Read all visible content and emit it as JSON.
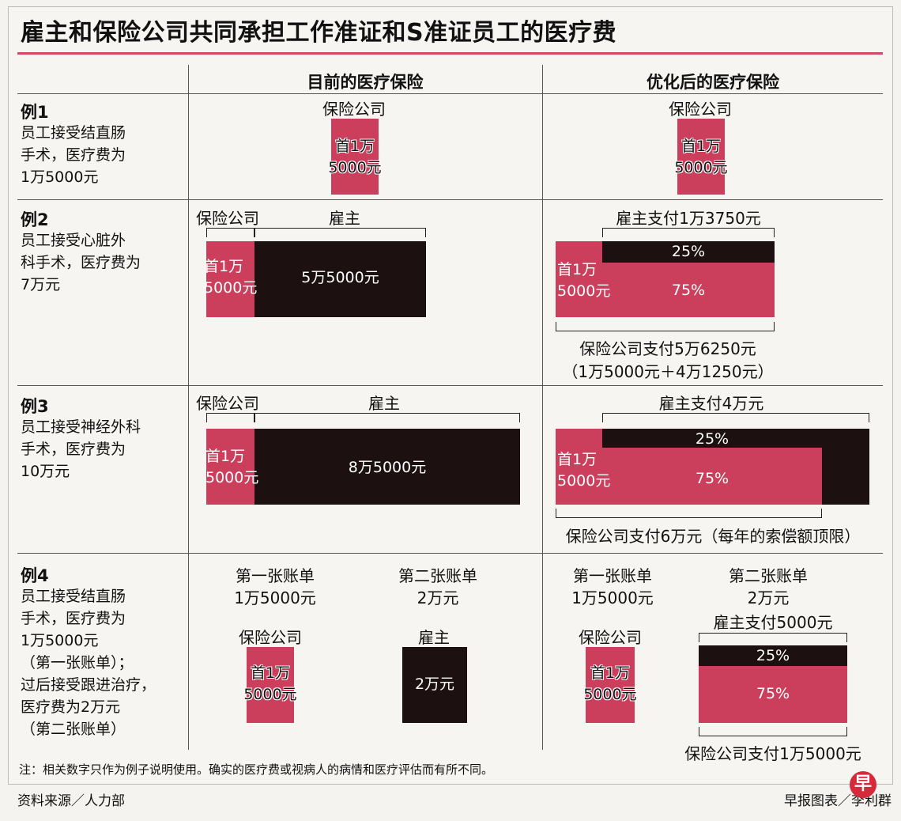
{
  "title": "雇主和保险公司共同承担工作准证和S准证员工的医疗费",
  "headers": {
    "current": "目前的医疗保险",
    "optimized": "优化后的医疗保险"
  },
  "examples": [
    {
      "title": "例1",
      "desc": "员工接受结直肠\n手术，医疗费为\n1万5000元",
      "current": {
        "insurer_label": "保险公司",
        "insurer_box": "首1万\n5000元"
      },
      "optimized": {
        "insurer_label": "保险公司",
        "insurer_box": "首1万\n5000元"
      }
    },
    {
      "title": "例2",
      "desc": "员工接受心脏外\n科手术，医疗费为\n7万元",
      "current": {
        "insurer_label": "保险公司",
        "employer_label": "雇主",
        "insurer_box": "首1万\n5000元",
        "employer_box": "5万5000元"
      },
      "optimized": {
        "employer_pays": "雇主支付1万3750元",
        "first_box": "首1万\n5000元",
        "pct_employer": "25%",
        "pct_insurer": "75%",
        "insurer_pays": "保险公司支付5万6250元",
        "insurer_breakdown": "（1万5000元＋4万1250元）"
      }
    },
    {
      "title": "例3",
      "desc": "员工接受神经外科\n手术，医疗费为\n10万元",
      "current": {
        "insurer_label": "保险公司",
        "employer_label": "雇主",
        "insurer_box": "首1万\n5000元",
        "employer_box": "8万5000元"
      },
      "optimized": {
        "employer_pays": "雇主支付4万元",
        "first_box": "首1万\n5000元",
        "pct_employer": "25%",
        "pct_insurer": "75%",
        "insurer_pays": "保险公司支付6万元（每年的索偿额顶限）"
      }
    },
    {
      "title": "例4",
      "desc": "员工接受结直肠\n手术，医疗费为\n1万5000元\n（第一张账单）；\n过后接受跟进治疗，\n医疗费为2万元\n（第二张账单）",
      "current": {
        "bill1_title": "第一张账单",
        "bill1_amount": "1万5000元",
        "bill2_title": "第二张账单",
        "bill2_amount": "2万元",
        "insurer_label": "保险公司",
        "employer_label": "雇主",
        "insurer_box": "首1万\n5000元",
        "employer_box": "2万元"
      },
      "optimized": {
        "bill1_title": "第一张账单",
        "bill1_amount": "1万5000元",
        "bill2_title": "第二张账单",
        "bill2_amount": "2万元",
        "insurer_label": "保险公司",
        "insurer_box": "首1万\n5000元",
        "employer_pays": "雇主支付5000元",
        "pct_employer": "25%",
        "pct_insurer": "75%",
        "insurer_pays": "保险公司支付1万5000元"
      }
    }
  ],
  "note": "注：相关数字只作为例子说明使用。确实的医疗费或视病人的病情和医疗评估而有所不同。",
  "source": "资料来源／人力部",
  "credit": "早报图表／李利群",
  "logo_text": "早",
  "colors": {
    "insurer": "#cc3f5c",
    "employer": "#1c1010",
    "accent": "#d24b62"
  }
}
